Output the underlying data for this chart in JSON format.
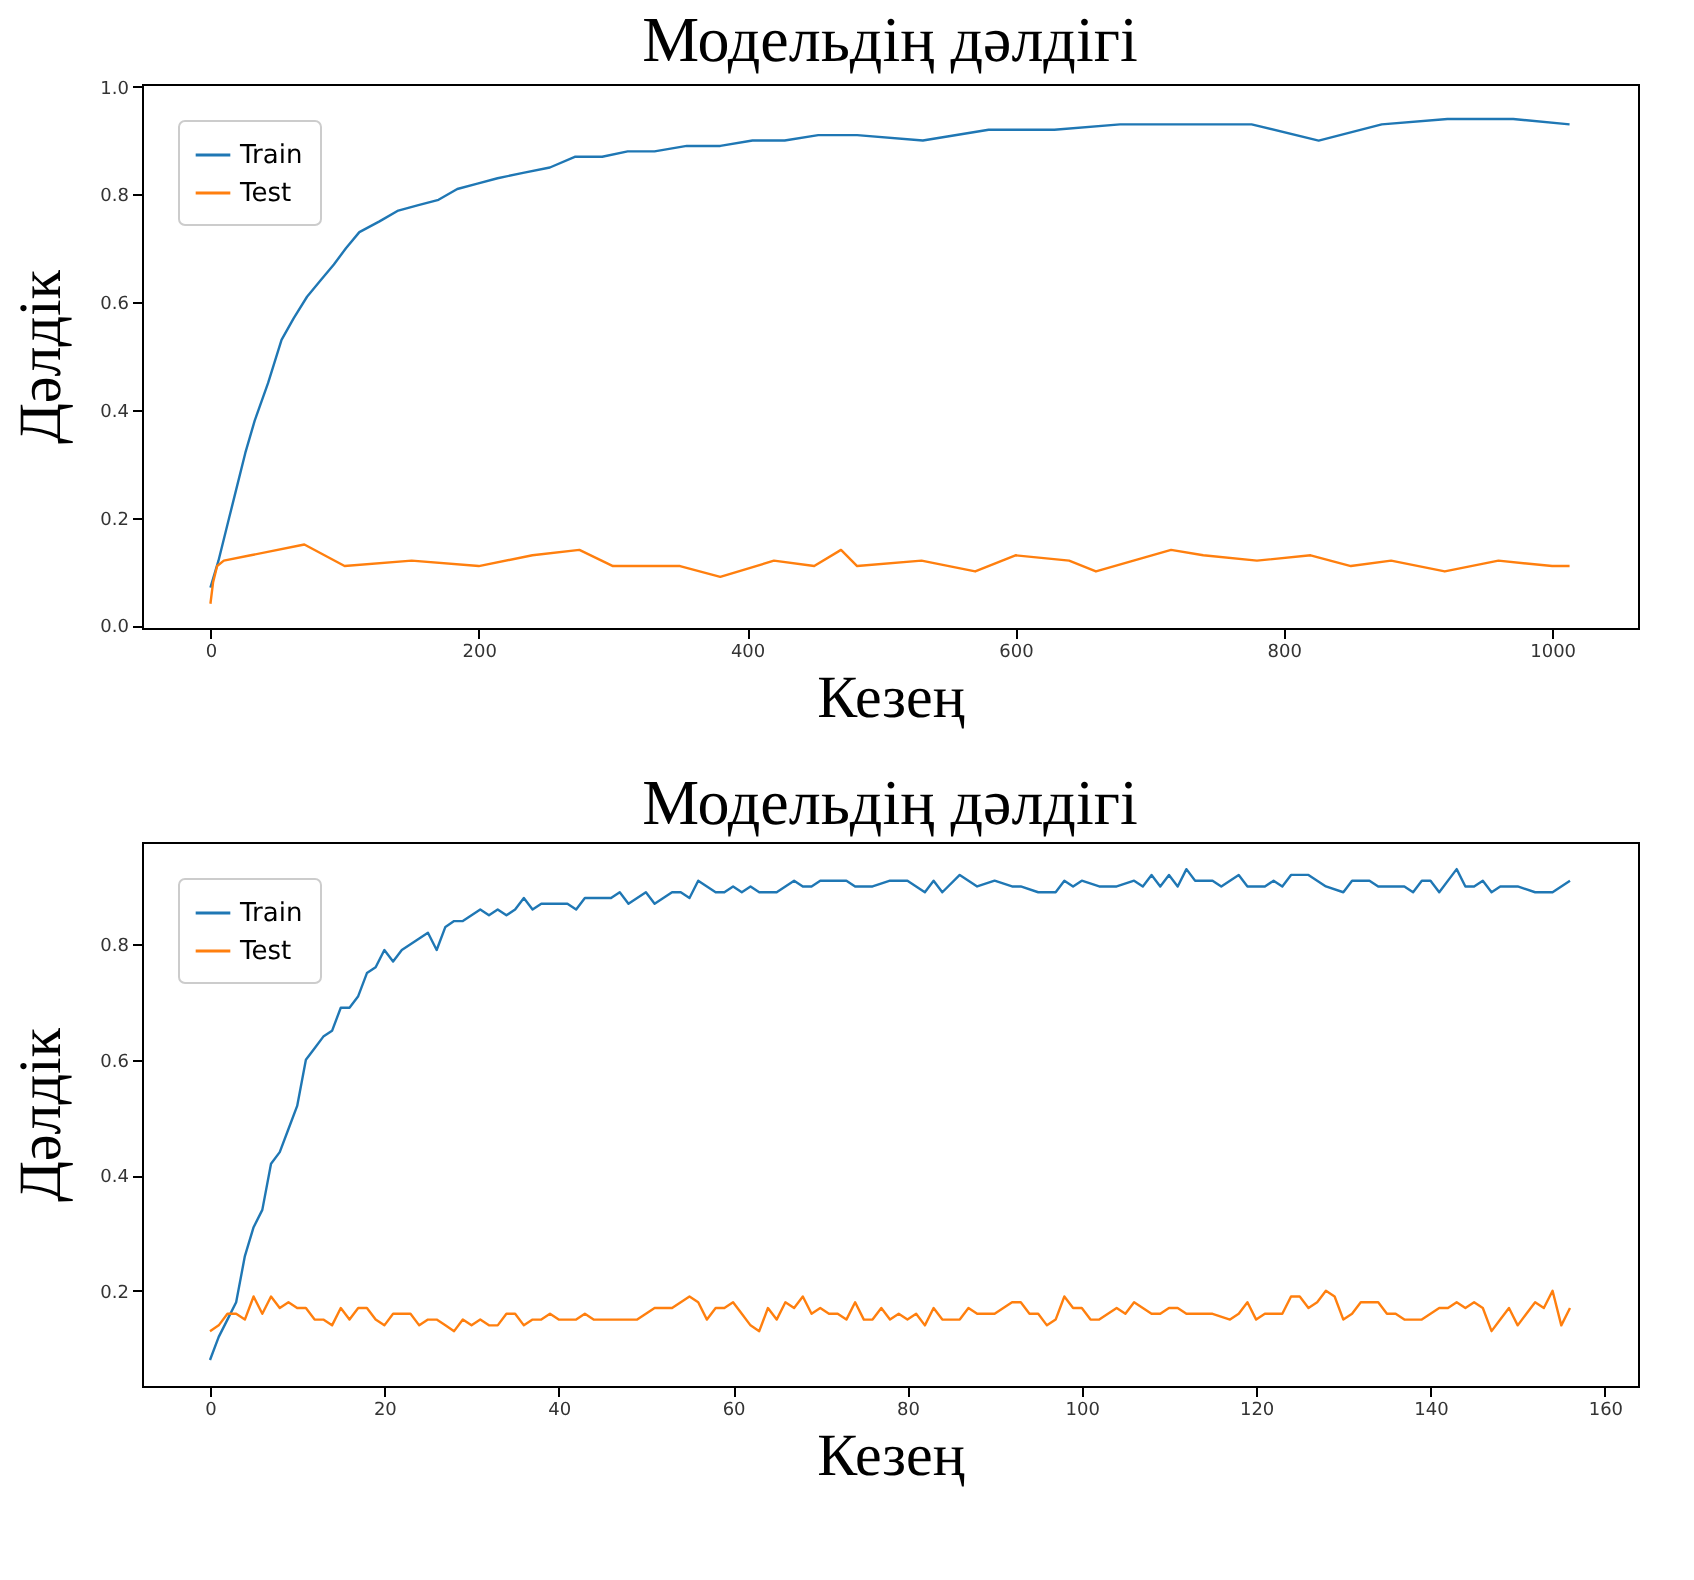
{
  "chart_data": [
    {
      "type": "line",
      "title": "Модельдің дәлдігі",
      "xlabel": "Кезең",
      "ylabel": "Дәлдік",
      "legend": "top left",
      "grid": false,
      "xlim": [
        -51,
        1064
      ],
      "xticks": [
        0,
        200,
        400,
        600,
        800,
        1000
      ],
      "ylim": [
        -0.005,
        1.005
      ],
      "yticks": [
        {
          "value": 0,
          "label": "0.0"
        },
        0.2,
        0.4,
        0.6,
        0.8,
        {
          "value": 1,
          "label": "1.0"
        }
      ],
      "series": [
        {
          "name": "Train",
          "color": "#1f77b4",
          "x": [
            0,
            6,
            14,
            19,
            26,
            33,
            43,
            53,
            62,
            72,
            82,
            92,
            101,
            111,
            126,
            140,
            155,
            170,
            184,
            199,
            214,
            233,
            253,
            272,
            292,
            311,
            331,
            355,
            380,
            404,
            428,
            453,
            477,
            482,
            531,
            580,
            629,
            678,
            727,
            776,
            826,
            873,
            922,
            971,
            1013
          ],
          "values": [
            0.07,
            0.12,
            0.2,
            0.25,
            0.32,
            0.38,
            0.45,
            0.53,
            0.57,
            0.61,
            0.64,
            0.67,
            0.7,
            0.73,
            0.75,
            0.77,
            0.78,
            0.79,
            0.81,
            0.82,
            0.83,
            0.84,
            0.85,
            0.87,
            0.87,
            0.88,
            0.88,
            0.89,
            0.89,
            0.9,
            0.9,
            0.91,
            0.91,
            0.91,
            0.9,
            0.92,
            0.92,
            0.93,
            0.93,
            0.93,
            0.9,
            0.93,
            0.94,
            0.94,
            0.93
          ]
        },
        {
          "name": "Test",
          "color": "#ff7f0e",
          "x": [
            0,
            2,
            5,
            10,
            30,
            70,
            100,
            150,
            200,
            240,
            275,
            300,
            350,
            380,
            420,
            450,
            470,
            482,
            530,
            570,
            600,
            640,
            660,
            716,
            740,
            780,
            820,
            850,
            880,
            920,
            960,
            1000,
            1013
          ],
          "values": [
            0.04,
            0.08,
            0.11,
            0.12,
            0.13,
            0.15,
            0.11,
            0.12,
            0.11,
            0.13,
            0.14,
            0.11,
            0.11,
            0.09,
            0.12,
            0.11,
            0.14,
            0.11,
            0.12,
            0.1,
            0.13,
            0.12,
            0.1,
            0.14,
            0.13,
            0.12,
            0.13,
            0.11,
            0.12,
            0.1,
            0.12,
            0.11,
            0.11
          ]
        }
      ]
    },
    {
      "type": "line",
      "title": "Модельдің дәлдігі",
      "xlabel": "Кезең",
      "ylabel": "Дәлдік",
      "legend": "top left",
      "grid": false,
      "xlim": [
        -7.8,
        163.8
      ],
      "xticks": [
        0,
        20,
        40,
        60,
        80,
        100,
        120,
        140,
        160
      ],
      "ylim": [
        0.035,
        0.977
      ],
      "yticks": [
        0.2,
        0.4,
        0.6,
        0.8
      ],
      "series": [
        {
          "name": "Train",
          "color": "#1f77b4",
          "x": [
            0,
            1,
            2,
            3,
            4,
            5,
            6,
            7,
            8,
            9,
            10,
            11,
            12,
            13,
            14,
            15,
            16,
            17,
            18,
            19,
            20,
            21,
            22,
            23,
            24,
            25,
            26,
            27,
            28,
            29,
            30,
            31,
            32,
            33,
            34,
            35,
            36,
            37,
            38,
            39,
            40,
            41,
            42,
            43,
            44,
            45,
            46,
            47,
            48,
            49,
            50,
            51,
            52,
            53,
            54,
            55,
            56,
            57,
            58,
            59,
            60,
            61,
            62,
            63,
            64,
            65,
            66,
            67,
            68,
            69,
            70,
            71,
            72,
            73,
            74,
            75,
            76,
            78,
            80,
            82,
            83,
            84,
            86,
            88,
            90,
            92,
            93,
            95,
            97,
            98,
            99,
            100,
            102,
            104,
            106,
            107,
            108,
            109,
            110,
            111,
            112,
            113,
            115,
            116,
            118,
            119,
            121,
            122,
            123,
            124,
            126,
            127,
            128,
            130,
            131,
            133,
            134,
            136,
            137,
            138,
            139,
            140,
            141,
            143,
            144,
            145,
            146,
            147,
            148,
            150,
            152,
            154,
            156
          ],
          "values": [
            0.08,
            0.12,
            0.15,
            0.18,
            0.26,
            0.31,
            0.34,
            0.42,
            0.44,
            0.48,
            0.52,
            0.6,
            0.62,
            0.64,
            0.65,
            0.69,
            0.69,
            0.71,
            0.75,
            0.76,
            0.79,
            0.77,
            0.79,
            0.8,
            0.81,
            0.82,
            0.79,
            0.83,
            0.84,
            0.84,
            0.85,
            0.86,
            0.85,
            0.86,
            0.85,
            0.86,
            0.88,
            0.86,
            0.87,
            0.87,
            0.87,
            0.87,
            0.86,
            0.88,
            0.88,
            0.88,
            0.88,
            0.89,
            0.87,
            0.88,
            0.89,
            0.87,
            0.88,
            0.89,
            0.89,
            0.88,
            0.91,
            0.9,
            0.89,
            0.89,
            0.9,
            0.89,
            0.9,
            0.89,
            0.89,
            0.89,
            0.9,
            0.91,
            0.9,
            0.9,
            0.91,
            0.91,
            0.91,
            0.91,
            0.9,
            0.9,
            0.9,
            0.91,
            0.91,
            0.89,
            0.91,
            0.89,
            0.92,
            0.9,
            0.91,
            0.9,
            0.9,
            0.89,
            0.89,
            0.91,
            0.9,
            0.91,
            0.9,
            0.9,
            0.91,
            0.9,
            0.92,
            0.9,
            0.92,
            0.9,
            0.93,
            0.91,
            0.91,
            0.9,
            0.92,
            0.9,
            0.9,
            0.91,
            0.9,
            0.92,
            0.92,
            0.91,
            0.9,
            0.89,
            0.91,
            0.91,
            0.9,
            0.9,
            0.9,
            0.89,
            0.91,
            0.91,
            0.89,
            0.93,
            0.9,
            0.9,
            0.91,
            0.89,
            0.9,
            0.9,
            0.89,
            0.89,
            0.91
          ]
        },
        {
          "name": "Test",
          "color": "#ff7f0e",
          "x": [
            0,
            1,
            2,
            3,
            4,
            5,
            6,
            7,
            8,
            9,
            10,
            11,
            12,
            13,
            14,
            15,
            16,
            17,
            18,
            19,
            20,
            21,
            22,
            23,
            24,
            25,
            26,
            27,
            28,
            29,
            30,
            31,
            32,
            33,
            34,
            35,
            36,
            37,
            38,
            39,
            40,
            41,
            42,
            43,
            44,
            45,
            46,
            47,
            48,
            49,
            50,
            51,
            52,
            53,
            54,
            55,
            56,
            57,
            58,
            59,
            60,
            61,
            62,
            63,
            64,
            65,
            66,
            67,
            68,
            69,
            70,
            71,
            72,
            73,
            74,
            75,
            76,
            77,
            78,
            79,
            80,
            81,
            82,
            83,
            84,
            85,
            86,
            87,
            88,
            89,
            90,
            91,
            92,
            93,
            94,
            95,
            96,
            97,
            98,
            99,
            100,
            101,
            102,
            103,
            104,
            105,
            106,
            107,
            108,
            109,
            110,
            111,
            112,
            113,
            115,
            117,
            118,
            119,
            120,
            121,
            122,
            123,
            124,
            125,
            126,
            127,
            128,
            129,
            130,
            131,
            132,
            133,
            134,
            135,
            136,
            137,
            138,
            139,
            140,
            141,
            142,
            143,
            144,
            145,
            146,
            147,
            148,
            149,
            150,
            151,
            152,
            153,
            154,
            155,
            156
          ],
          "values": [
            0.13,
            0.14,
            0.16,
            0.16,
            0.15,
            0.19,
            0.16,
            0.19,
            0.17,
            0.18,
            0.17,
            0.17,
            0.15,
            0.15,
            0.14,
            0.17,
            0.15,
            0.17,
            0.17,
            0.15,
            0.14,
            0.16,
            0.16,
            0.16,
            0.14,
            0.15,
            0.15,
            0.14,
            0.13,
            0.15,
            0.14,
            0.15,
            0.14,
            0.14,
            0.16,
            0.16,
            0.14,
            0.15,
            0.15,
            0.16,
            0.15,
            0.15,
            0.15,
            0.16,
            0.15,
            0.15,
            0.15,
            0.15,
            0.15,
            0.15,
            0.16,
            0.17,
            0.17,
            0.17,
            0.18,
            0.19,
            0.18,
            0.15,
            0.17,
            0.17,
            0.18,
            0.16,
            0.14,
            0.13,
            0.17,
            0.15,
            0.18,
            0.17,
            0.19,
            0.16,
            0.17,
            0.16,
            0.16,
            0.15,
            0.18,
            0.15,
            0.15,
            0.17,
            0.15,
            0.16,
            0.15,
            0.16,
            0.14,
            0.17,
            0.15,
            0.15,
            0.15,
            0.17,
            0.16,
            0.16,
            0.16,
            0.17,
            0.18,
            0.18,
            0.16,
            0.16,
            0.14,
            0.15,
            0.19,
            0.17,
            0.17,
            0.15,
            0.15,
            0.16,
            0.17,
            0.16,
            0.18,
            0.17,
            0.16,
            0.16,
            0.17,
            0.17,
            0.16,
            0.16,
            0.16,
            0.15,
            0.16,
            0.18,
            0.15,
            0.16,
            0.16,
            0.16,
            0.19,
            0.19,
            0.17,
            0.18,
            0.2,
            0.19,
            0.15,
            0.16,
            0.18,
            0.18,
            0.18,
            0.16,
            0.16,
            0.15,
            0.15,
            0.15,
            0.16,
            0.17,
            0.17,
            0.18,
            0.17,
            0.18,
            0.17,
            0.13,
            0.15,
            0.17,
            0.14,
            0.16,
            0.18,
            0.17,
            0.2,
            0.14,
            0.17
          ]
        }
      ]
    }
  ]
}
